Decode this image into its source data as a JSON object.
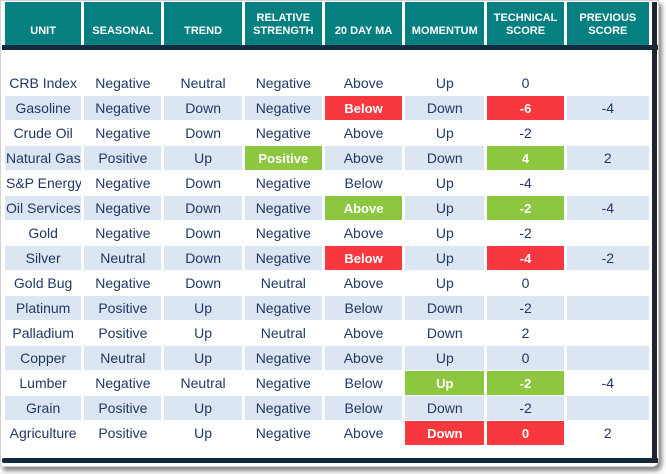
{
  "colors": {
    "header_bg": "#067f81",
    "header_text": "#ffffff",
    "body_text": "#1f3864",
    "stripe_bg": "#dce6f2",
    "red_bg": "#f7383f",
    "green_bg": "#8dc63f",
    "border_line": "#13293e",
    "right_border": "#1e2530"
  },
  "table": {
    "columns": [
      "UNIT",
      "SEASONAL",
      "TREND",
      "RELATIVE STRENGTH",
      "20 DAY MA",
      "MOMENTUM",
      "TECHNICAL SCORE",
      "PREVIOUS SCORE"
    ],
    "rows": [
      {
        "cells": [
          {
            "text": "CRB Index"
          },
          {
            "text": "Negative"
          },
          {
            "text": "Neutral"
          },
          {
            "text": "Negative"
          },
          {
            "text": "Above"
          },
          {
            "text": "Up"
          },
          {
            "text": "0"
          },
          {
            "text": ""
          }
        ]
      },
      {
        "cells": [
          {
            "text": "Gasoline"
          },
          {
            "text": "Negative"
          },
          {
            "text": "Down"
          },
          {
            "text": "Negative"
          },
          {
            "text": "Below",
            "hl": "red"
          },
          {
            "text": "Down"
          },
          {
            "text": "-6",
            "hl": "red"
          },
          {
            "text": "-4"
          }
        ]
      },
      {
        "cells": [
          {
            "text": "Crude Oil"
          },
          {
            "text": "Negative"
          },
          {
            "text": "Down"
          },
          {
            "text": "Negative"
          },
          {
            "text": "Above"
          },
          {
            "text": "Up"
          },
          {
            "text": "-2"
          },
          {
            "text": ""
          }
        ]
      },
      {
        "cells": [
          {
            "text": "Natural Gas"
          },
          {
            "text": "Positive"
          },
          {
            "text": "Up"
          },
          {
            "text": "Positive",
            "hl": "green"
          },
          {
            "text": "Above"
          },
          {
            "text": "Down"
          },
          {
            "text": "4",
            "hl": "green"
          },
          {
            "text": "2"
          }
        ]
      },
      {
        "cells": [
          {
            "text": "S&P Energy"
          },
          {
            "text": "Negative"
          },
          {
            "text": "Down"
          },
          {
            "text": "Negative"
          },
          {
            "text": "Below"
          },
          {
            "text": "Up"
          },
          {
            "text": "-4"
          },
          {
            "text": ""
          }
        ]
      },
      {
        "cells": [
          {
            "text": "Oil Services"
          },
          {
            "text": "Negative"
          },
          {
            "text": "Down"
          },
          {
            "text": "Negative"
          },
          {
            "text": "Above",
            "hl": "green"
          },
          {
            "text": "Up"
          },
          {
            "text": "-2",
            "hl": "green"
          },
          {
            "text": "-4"
          }
        ]
      },
      {
        "cells": [
          {
            "text": "Gold"
          },
          {
            "text": "Negative"
          },
          {
            "text": "Down"
          },
          {
            "text": "Negative"
          },
          {
            "text": "Above"
          },
          {
            "text": "Up"
          },
          {
            "text": "-2"
          },
          {
            "text": ""
          }
        ]
      },
      {
        "cells": [
          {
            "text": "Silver"
          },
          {
            "text": "Neutral"
          },
          {
            "text": "Down"
          },
          {
            "text": "Negative"
          },
          {
            "text": "Below",
            "hl": "red"
          },
          {
            "text": "Up"
          },
          {
            "text": "-4",
            "hl": "red"
          },
          {
            "text": "-2"
          }
        ]
      },
      {
        "cells": [
          {
            "text": "Gold Bug"
          },
          {
            "text": "Negative"
          },
          {
            "text": "Down"
          },
          {
            "text": "Neutral"
          },
          {
            "text": "Above"
          },
          {
            "text": "Up"
          },
          {
            "text": "0"
          },
          {
            "text": ""
          }
        ]
      },
      {
        "cells": [
          {
            "text": "Platinum"
          },
          {
            "text": "Positive"
          },
          {
            "text": "Up"
          },
          {
            "text": "Negative"
          },
          {
            "text": "Below"
          },
          {
            "text": "Down"
          },
          {
            "text": "-2"
          },
          {
            "text": ""
          }
        ]
      },
      {
        "cells": [
          {
            "text": "Palladium"
          },
          {
            "text": "Positive"
          },
          {
            "text": "Up"
          },
          {
            "text": "Neutral"
          },
          {
            "text": "Above"
          },
          {
            "text": "Down"
          },
          {
            "text": "2"
          },
          {
            "text": ""
          }
        ]
      },
      {
        "cells": [
          {
            "text": "Copper"
          },
          {
            "text": "Neutral"
          },
          {
            "text": "Up"
          },
          {
            "text": "Negative"
          },
          {
            "text": "Above"
          },
          {
            "text": "Up"
          },
          {
            "text": "0"
          },
          {
            "text": ""
          }
        ]
      },
      {
        "cells": [
          {
            "text": "Lumber"
          },
          {
            "text": "Negative"
          },
          {
            "text": "Neutral"
          },
          {
            "text": "Negative"
          },
          {
            "text": "Below"
          },
          {
            "text": "Up",
            "hl": "green"
          },
          {
            "text": "-2",
            "hl": "green"
          },
          {
            "text": "-4"
          }
        ]
      },
      {
        "cells": [
          {
            "text": "Grain"
          },
          {
            "text": "Positive"
          },
          {
            "text": "Up"
          },
          {
            "text": "Negative"
          },
          {
            "text": "Below"
          },
          {
            "text": "Down"
          },
          {
            "text": "-2"
          },
          {
            "text": ""
          }
        ]
      },
      {
        "cells": [
          {
            "text": "Agriculture"
          },
          {
            "text": "Positive"
          },
          {
            "text": "Up"
          },
          {
            "text": "Negative"
          },
          {
            "text": "Above"
          },
          {
            "text": "Down",
            "hl": "red"
          },
          {
            "text": "0",
            "hl": "red"
          },
          {
            "text": "2"
          }
        ]
      }
    ]
  }
}
